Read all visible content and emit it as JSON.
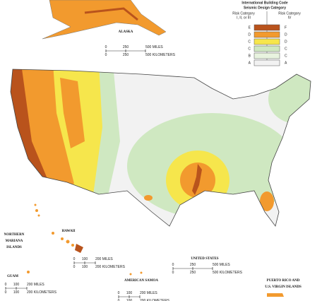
{
  "legend": {
    "title": [
      "International Building Code",
      "Seismic Design Category"
    ],
    "col_headers": [
      [
        "Risk Category",
        "I, II, or III"
      ],
      [
        "Risk Category",
        "IV"
      ]
    ],
    "rows": [
      {
        "left": "E",
        "right": "F",
        "color": "#b9531c"
      },
      {
        "left": "D",
        "right": "D",
        "color": "#f29a2e"
      },
      {
        "left": "C",
        "right": "D",
        "color": "#f6e64c"
      },
      {
        "left": "C",
        "right": "C",
        "color": "#cfe8c1"
      },
      {
        "left": "B",
        "right": "C",
        "color": "#e8f3df"
      },
      {
        "left": "A",
        "right": "A",
        "color": "#f2f2f2"
      }
    ]
  },
  "places": {
    "alaska": "ALASKA",
    "hawaii": "HAWAII",
    "mariana": [
      "NORTHERN",
      "MARIANA",
      "ISLANDS"
    ],
    "guam": "GUAM",
    "samoa": "AMERICAN SAMOA",
    "us": "UNITED STATES",
    "puerto_rico": [
      "PUERTO RICO AND",
      "U.S. VIRGIN ISLANDS"
    ]
  },
  "scale_bars": {
    "alaska": {
      "miles": [
        "0",
        "250",
        "500 MILES"
      ],
      "km": [
        "0",
        "250",
        "500 KILOMETERS"
      ]
    },
    "hawaii": {
      "miles": [
        "0",
        "100",
        "200 MILES"
      ],
      "km": [
        "0",
        "100",
        "200 KILOMETERS"
      ]
    },
    "guam": {
      "miles": [
        "0",
        "100",
        "200 MILES"
      ],
      "km": [
        "0",
        "100",
        "200 KILOMETERS"
      ]
    },
    "samoa": {
      "miles": [
        "0",
        "100",
        "200 MILES"
      ],
      "km": [
        "0",
        "100",
        "200 KILOMETERS"
      ]
    },
    "us": {
      "miles": [
        "0",
        "250",
        "500 MILES"
      ],
      "km": [
        "0",
        "250",
        "500 KILOMETERS"
      ]
    }
  }
}
